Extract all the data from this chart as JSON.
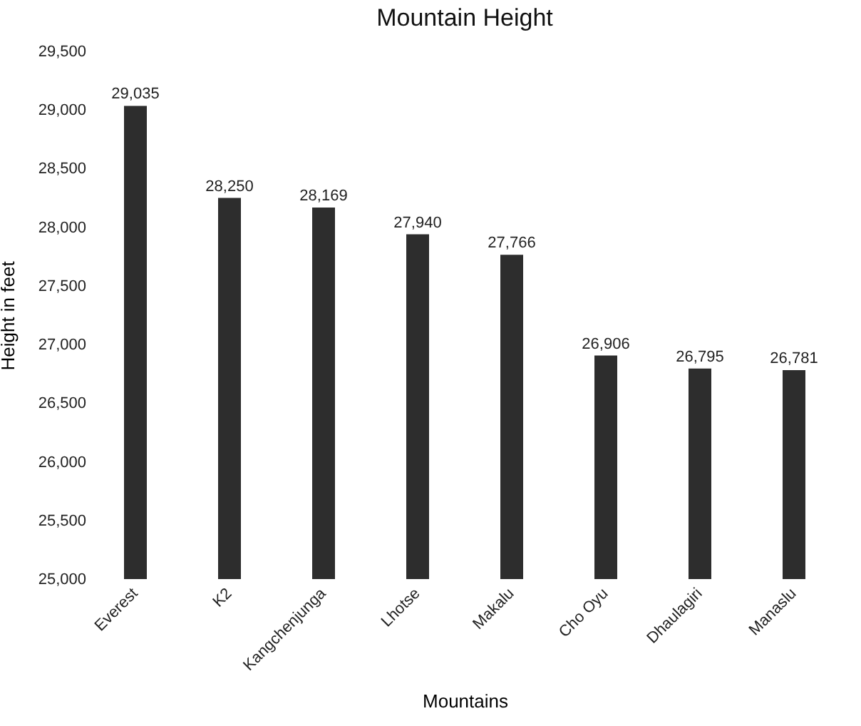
{
  "chart_data": {
    "type": "bar",
    "title": "Mountain Height",
    "xlabel": "Mountains",
    "ylabel": "Height in feet",
    "categories": [
      "Everest",
      "K2",
      "Kangchenjunga",
      "Lhotse",
      "Makalu",
      "Cho Oyu",
      "Dhaulagiri",
      "Manaslu"
    ],
    "values": [
      29035,
      28250,
      28169,
      27940,
      27766,
      26906,
      26795,
      26781
    ],
    "color": "#2d2d2d",
    "value_labels": [
      "29,035",
      "28,250",
      "28,169",
      "27,940",
      "27,766",
      "26,906",
      "26,795",
      "26,781"
    ],
    "ylim": [
      25000,
      29500
    ],
    "yticks": [
      {
        "value": 25000,
        "label": "25,000"
      },
      {
        "value": 25500,
        "label": "25,500"
      },
      {
        "value": 26000,
        "label": "26,000"
      },
      {
        "value": 26500,
        "label": "26,500"
      },
      {
        "value": 27000,
        "label": "27,000"
      },
      {
        "value": 27500,
        "label": "27,500"
      },
      {
        "value": 28000,
        "label": "28,000"
      },
      {
        "value": 28500,
        "label": "28,500"
      },
      {
        "value": 29000,
        "label": "29,000"
      },
      {
        "value": 29500,
        "label": "29,500"
      }
    ],
    "grid": false
  }
}
